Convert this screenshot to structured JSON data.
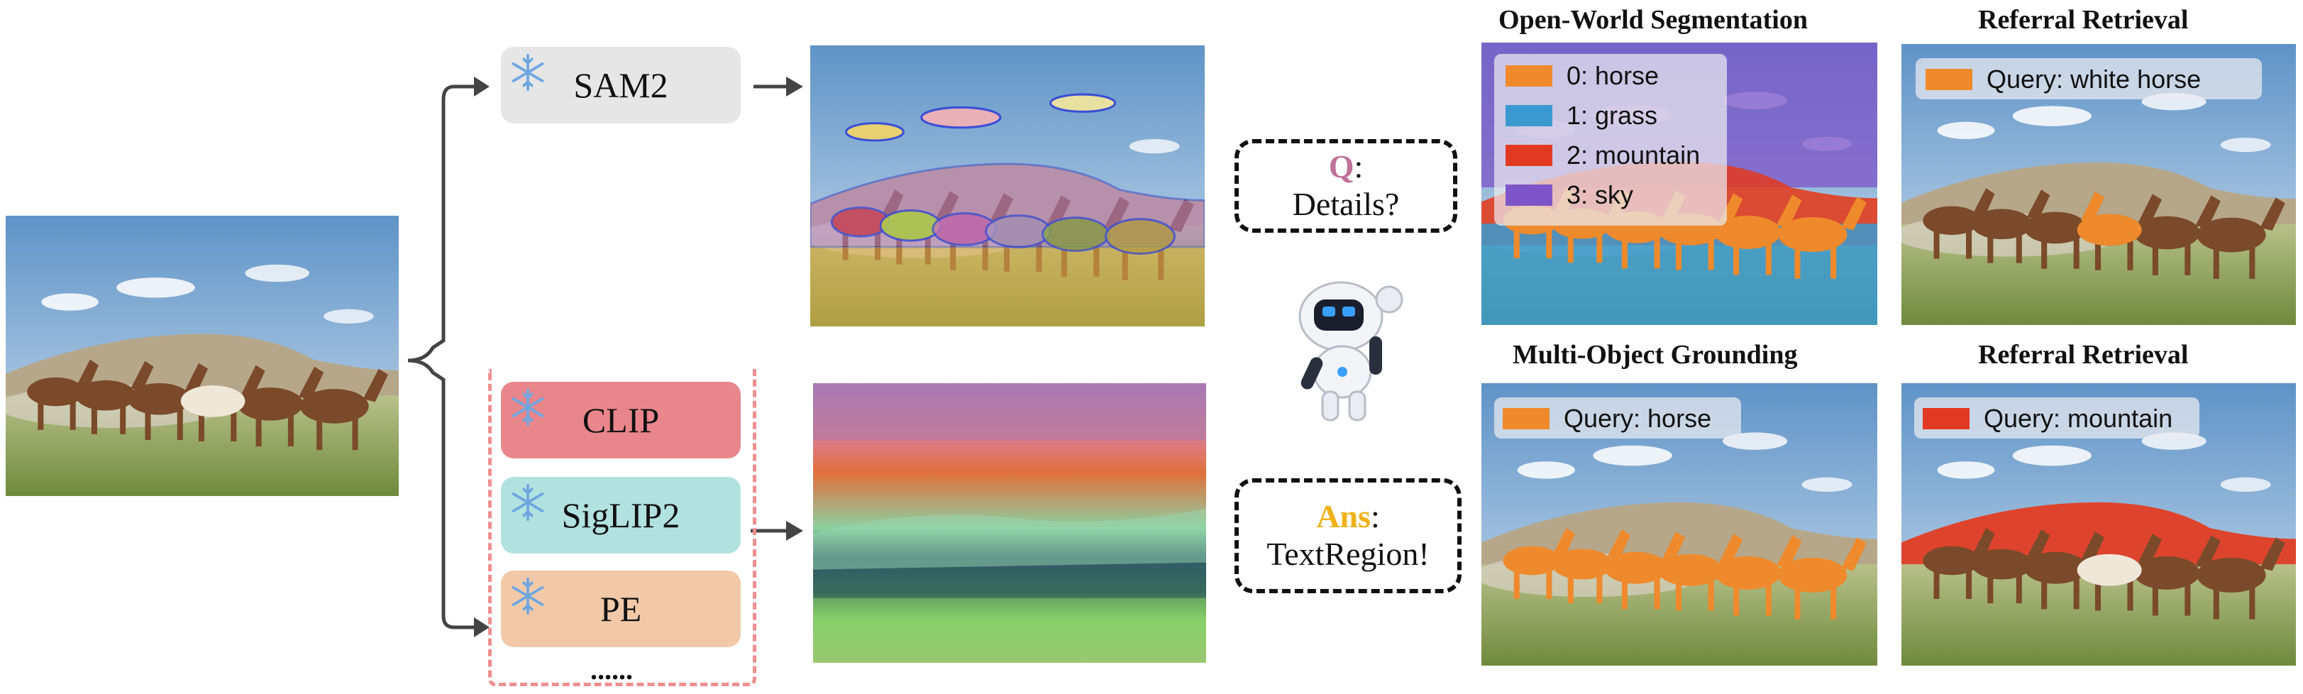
{
  "models": {
    "sam2": "SAM2",
    "clip": "CLIP",
    "siglip2": "SigLIP2",
    "pe": "PE",
    "more": "......"
  },
  "question": {
    "prefix": "Q",
    "suffix": ":",
    "text": "Details?"
  },
  "answer": {
    "prefix": "Ans",
    "suffix": ":",
    "text": "TextRegion!"
  },
  "panels": {
    "open_world": {
      "title": "Open-World Segmentation",
      "legend": [
        {
          "label": "0: horse",
          "color": "#ee8a2c"
        },
        {
          "label": "1: grass",
          "color": "#3a9ad0"
        },
        {
          "label": "2: mountain",
          "color": "#e23a22"
        },
        {
          "label": "3: sky",
          "color": "#7d55c8"
        }
      ]
    },
    "referral_1": {
      "title": "Referral Retrieval",
      "query": "Query: white horse",
      "color": "#ee8a2c"
    },
    "grounding": {
      "title": "Multi-Object Grounding",
      "query": "Query: horse",
      "color": "#ee8a2c"
    },
    "referral_2": {
      "title": "Referral Retrieval",
      "query": "Query: mountain",
      "color": "#e23a22"
    }
  },
  "colors": {
    "clip_box": "#e8868c",
    "siglip_box": "#b2e2df",
    "pe_box": "#f1c9a9",
    "sam_box": "#e6e6e6",
    "q_color": "#c0719a",
    "ans_color": "#f0b21a",
    "dash_box": "#ef8f8f",
    "snowflake": "#6fa6e0"
  }
}
